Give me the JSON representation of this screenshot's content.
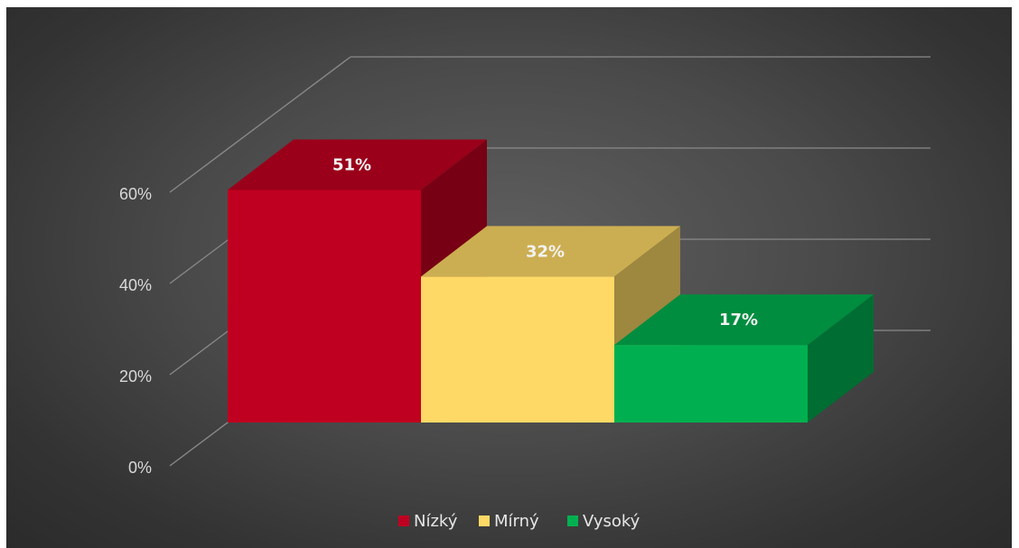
{
  "chart_data": {
    "type": "bar",
    "categories": [
      "Nízký",
      "Mírný",
      "Vysoký"
    ],
    "series": [
      {
        "values": [
          51,
          32,
          17
        ],
        "labels": [
          "51%",
          "32%",
          "17%"
        ],
        "colors": [
          "#c00020",
          "#ffd966",
          "#00b050"
        ]
      }
    ],
    "legend": {
      "position": "bottom",
      "entries": [
        {
          "label": "Nízký",
          "color": "#c00020"
        },
        {
          "label": "Mírný",
          "color": "#ffd966"
        },
        {
          "label": "Vysoký",
          "color": "#00b050"
        }
      ]
    },
    "y_ticks": [
      "0%",
      "20%",
      "40%",
      "60%"
    ],
    "ylim": [
      0,
      60
    ],
    "grid": true,
    "style": "3d-stacked-depth"
  }
}
